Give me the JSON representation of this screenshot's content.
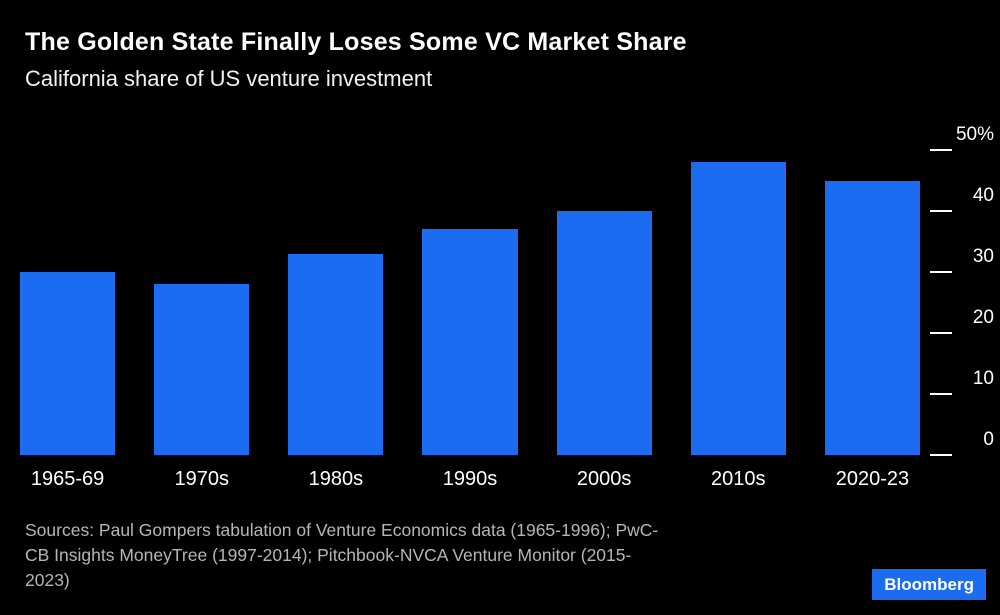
{
  "header": {},
  "chart_data": {
    "type": "bar",
    "title": "The Golden State Finally Loses Some VC Market Share",
    "subtitle": "California share of US venture investment",
    "categories": [
      "1965-69",
      "1970s",
      "1980s",
      "1990s",
      "2000s",
      "2010s",
      "2020-23"
    ],
    "values": [
      30,
      28,
      33,
      37,
      40,
      48,
      45
    ],
    "unit": "%",
    "xlabel": "",
    "ylabel": "",
    "ylim": [
      0,
      50
    ],
    "yticks": [
      0,
      10,
      20,
      30,
      40,
      50
    ],
    "ytick_labels": [
      "0",
      "10",
      "20",
      "30",
      "40",
      "50%"
    ],
    "yaxis_position": "right",
    "grid": "short-tick-marks-right-only",
    "legend": "none",
    "bar_color": "#1c6cf2",
    "background_color": "#000000",
    "source_lines": [
      "Sources: Paul Gompers tabulation of Venture Economics data (1965-1996); PwC-",
      "CB Insights MoneyTree (1997-2014); Pitchbook-NVCA Venture Monitor (2015-",
      "2023)"
    ]
  },
  "footer": {
    "brand": "Bloomberg",
    "brand_bg": "#1c6cf2"
  },
  "colors": {
    "background": "#000000",
    "title_text": "#ffffff",
    "axis_text": "#ffffff",
    "muted_text": "#b4b7b7"
  }
}
